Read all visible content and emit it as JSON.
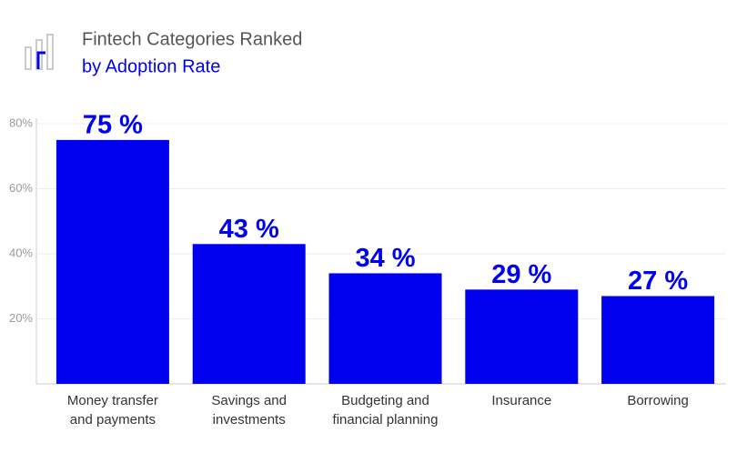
{
  "chart_data": {
    "type": "bar",
    "title": "Fintech Categories Ranked",
    "subtitle": "by Adoption Rate",
    "categories": [
      [
        "Money transfer",
        "and payments"
      ],
      [
        "Savings and",
        "investments"
      ],
      [
        "Budgeting and",
        "financial planning"
      ],
      [
        "Insurance"
      ],
      [
        "Borrowing"
      ]
    ],
    "values": [
      75,
      43,
      34,
      29,
      27
    ],
    "value_labels": [
      "75 %",
      "43 %",
      "34 %",
      "29 %",
      "27 %"
    ],
    "color": "#0000ee",
    "ylim": [
      0,
      80
    ],
    "yticks": [
      {
        "value": 20,
        "label": "20%"
      },
      {
        "value": 40,
        "label": "40%"
      },
      {
        "value": 60,
        "label": "60%"
      },
      {
        "value": 80,
        "label": "80%"
      }
    ],
    "grid": true
  }
}
